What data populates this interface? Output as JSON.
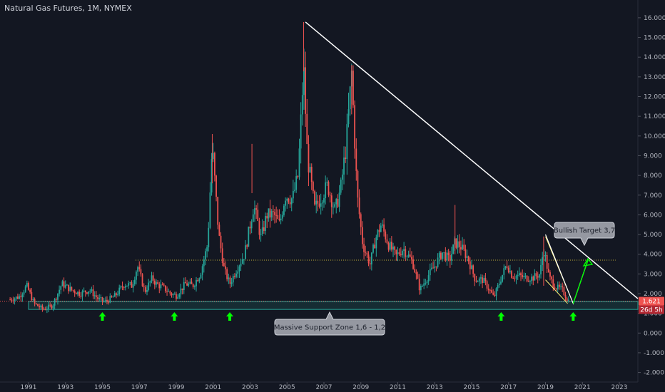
{
  "header": {
    "title": "Natural Gas Futures, 1M, NYMEX"
  },
  "colors": {
    "background": "#131722",
    "up": "#26a69a",
    "down": "#ef5350",
    "trendline": "#ffffff",
    "support_zone": "#26a69a",
    "target_line": "#c9b43b",
    "arrows": "#00ff00",
    "wedge": "#fff176",
    "price_tag": "#ef5350"
  },
  "price_tag": {
    "value": "1.621",
    "countdown": "26d 5h"
  },
  "chart_data": {
    "type": "candlestick",
    "symbol": "Natural Gas Futures",
    "interval": "1M",
    "exchange": "NYMEX",
    "x_ticks": [
      "1991",
      "1993",
      "1995",
      "1997",
      "1999",
      "2001",
      "2003",
      "2005",
      "2007",
      "2009",
      "2011",
      "2013",
      "2015",
      "2017",
      "2019",
      "2021",
      "2023"
    ],
    "y_ticks": [
      "16.000",
      "15.000",
      "14.000",
      "13.000",
      "12.000",
      "11.000",
      "10.000",
      "9.000",
      "8.000",
      "7.000",
      "6.000",
      "5.000",
      "4.000",
      "3.000",
      "2.000",
      "1.000",
      "0.000",
      "-1.000",
      "-2.000"
    ],
    "ylim": [
      -2.4,
      16.3
    ],
    "xlim": [
      1989.5,
      2024.2
    ],
    "series_points": [
      [
        1990.0,
        1.7
      ],
      [
        1990.5,
        1.85
      ],
      [
        1990.9,
        2.4
      ],
      [
        1991.3,
        1.5
      ],
      [
        1991.8,
        1.2
      ],
      [
        1992.3,
        1.4
      ],
      [
        1992.8,
        2.5
      ],
      [
        1993.3,
        2.2
      ],
      [
        1993.8,
        2.0
      ],
      [
        1994.3,
        2.2
      ],
      [
        1994.8,
        1.7
      ],
      [
        1995.2,
        1.6
      ],
      [
        1995.7,
        1.9
      ],
      [
        1996.2,
        2.5
      ],
      [
        1996.6,
        2.4
      ],
      [
        1996.9,
        3.4
      ],
      [
        1997.3,
        2.1
      ],
      [
        1997.7,
        2.8
      ],
      [
        1997.9,
        2.5
      ],
      [
        1998.3,
        2.3
      ],
      [
        1998.7,
        2.0
      ],
      [
        1999.0,
        1.9
      ],
      [
        1999.5,
        2.5
      ],
      [
        1999.9,
        2.4
      ],
      [
        2000.3,
        3.0
      ],
      [
        2000.7,
        4.5
      ],
      [
        2000.95,
        9.5
      ],
      [
        2001.3,
        5.0
      ],
      [
        2001.6,
        3.2
      ],
      [
        2001.9,
        2.5
      ],
      [
        2002.3,
        3.3
      ],
      [
        2002.7,
        4.0
      ],
      [
        2003.0,
        5.5
      ],
      [
        2003.2,
        6.5
      ],
      [
        2003.6,
        4.8
      ],
      [
        2003.9,
        6.0
      ],
      [
        2004.3,
        6.0
      ],
      [
        2004.6,
        5.5
      ],
      [
        2004.9,
        7.0
      ],
      [
        2005.3,
        6.8
      ],
      [
        2005.6,
        8.0
      ],
      [
        2005.9,
        13.5
      ],
      [
        2006.1,
        9.0
      ],
      [
        2006.5,
        6.3
      ],
      [
        2006.9,
        7.0
      ],
      [
        2007.2,
        7.5
      ],
      [
        2007.6,
        6.2
      ],
      [
        2007.9,
        7.3
      ],
      [
        2008.2,
        9.5
      ],
      [
        2008.5,
        13.2
      ],
      [
        2008.8,
        7.0
      ],
      [
        2009.1,
        4.5
      ],
      [
        2009.5,
        3.5
      ],
      [
        2009.8,
        4.8
      ],
      [
        2010.1,
        5.5
      ],
      [
        2010.5,
        4.5
      ],
      [
        2010.9,
        3.9
      ],
      [
        2011.3,
        4.3
      ],
      [
        2011.8,
        3.6
      ],
      [
        2012.2,
        2.2
      ],
      [
        2012.7,
        3.0
      ],
      [
        2013.0,
        3.4
      ],
      [
        2013.4,
        4.1
      ],
      [
        2013.8,
        3.7
      ],
      [
        2014.1,
        4.6
      ],
      [
        2014.4,
        4.4
      ],
      [
        2014.8,
        3.8
      ],
      [
        2015.2,
        2.7
      ],
      [
        2015.6,
        2.7
      ],
      [
        2015.9,
        2.3
      ],
      [
        2016.2,
        1.8
      ],
      [
        2016.6,
        2.8
      ],
      [
        2016.9,
        3.5
      ],
      [
        2017.2,
        2.9
      ],
      [
        2017.6,
        2.9
      ],
      [
        2017.9,
        2.8
      ],
      [
        2018.3,
        2.8
      ],
      [
        2018.7,
        3.0
      ],
      [
        2018.9,
        4.3
      ],
      [
        2019.2,
        2.8
      ],
      [
        2019.6,
        2.3
      ],
      [
        2019.9,
        2.2
      ],
      [
        2020.2,
        1.7
      ],
      [
        2020.3,
        1.621
      ]
    ],
    "annotations": {
      "callouts": [
        "Massive Support Zone 1,6 - 1,2",
        "Bullish Target 3,7"
      ],
      "trendline": {
        "from": [
          2006.0,
          15.78
        ],
        "to": [
          2024.0,
          1.75
        ]
      },
      "support_zone": [
        1.2,
        1.6
      ],
      "target_level": 3.7,
      "projection": [
        [
          2019.0,
          5.0
        ],
        [
          2020.5,
          1.5
        ],
        [
          2021.3,
          3.7
        ]
      ],
      "support_arrows_years": [
        1995.0,
        1998.9,
        2001.9,
        2016.6,
        2020.5
      ]
    }
  }
}
